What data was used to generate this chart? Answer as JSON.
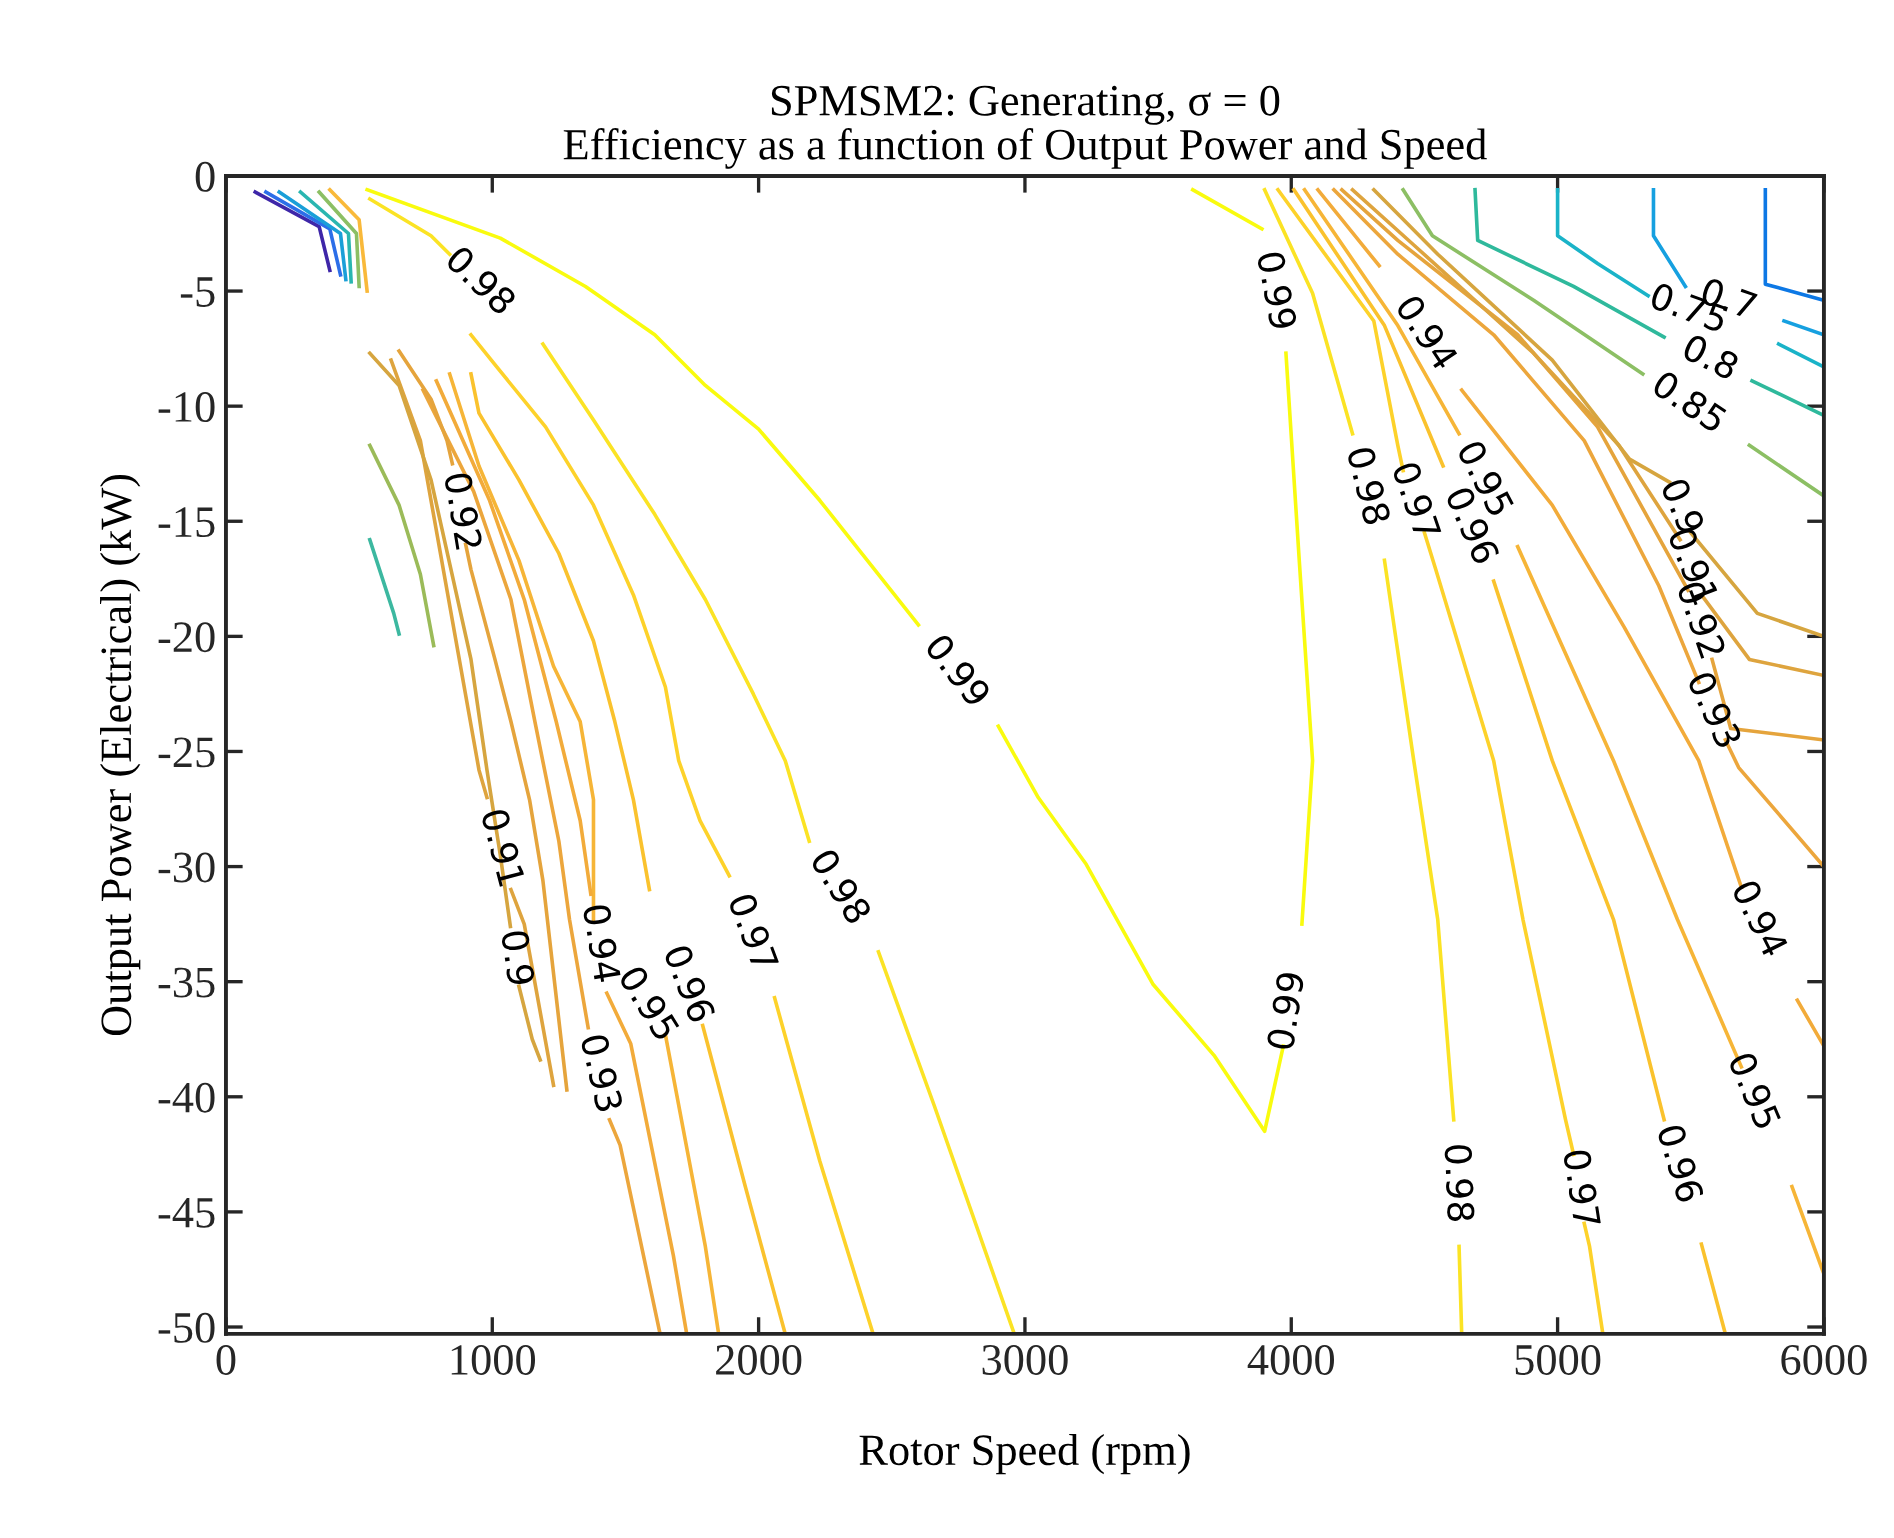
{
  "chart_data": {
    "type": "line",
    "title": "SPMSM2: Generating, σ = 0\nEfficiency as a function of Output Power and Speed",
    "xlabel": "Rotor Speed (rpm)",
    "ylabel": "Output Power (Electrical) (kW)",
    "xlim": [
      0,
      6000
    ],
    "xticks": [
      0,
      1000,
      2000,
      3000,
      4000,
      5000,
      6000
    ],
    "ylim": [
      -50.3,
      0
    ],
    "yticks": [
      -50,
      -45,
      -40,
      -35,
      -30,
      -25,
      -20,
      -15,
      -10,
      -5,
      0
    ],
    "grid": false,
    "series": [
      {
        "name": "0.99",
        "color": "#f9fb0e",
        "x": [
          530,
          1030,
          1350,
          1610,
          1800,
          2000,
          2230,
          2600,
          2740,
          2900,
          3050,
          3230,
          3480,
          3710,
          3900,
          3970,
          3990,
          4040,
          4080,
          4030,
          3980,
          3935,
          3890,
          3630
        ],
        "values": [
          -0.6,
          -2.7,
          -4.8,
          -6.9,
          -9.1,
          -11.0,
          -14.1,
          -19.5,
          null,
          -23.9,
          -27.0,
          -29.9,
          -35.1,
          -38.2,
          -41.5,
          -37.8,
          null,
          -32.5,
          -25.4,
          -16.7,
          -7.7,
          null,
          -2.3,
          -0.6
        ]
      },
      {
        "name": "0.98",
        "color": "#fbe324",
        "x": [
          540,
          770,
          840,
          950,
          1190,
          1380,
          1610,
          1800,
          1980,
          2100,
          2190,
          2300,
          2450,
          2660,
          2960
        ],
        "values": [
          -1.0,
          -2.6,
          -3.4,
          null,
          -7.3,
          -10.6,
          -14.7,
          -18.4,
          -22.5,
          -25.4,
          -28.9,
          null,
          -33.7,
          -40.4,
          -50.3
        ]
      },
      {
        "name": "0.97",
        "color": "#fdd22a",
        "x": [
          920,
          1010,
          1200,
          1380,
          1530,
          1650,
          1700,
          1780,
          1890,
          1970,
          2060,
          2230,
          2430
        ],
        "values": [
          -6.9,
          -8.2,
          -10.9,
          -14.3,
          -18.2,
          -22.2,
          -25.4,
          -28.0,
          -30.4,
          null,
          -35.7,
          -42.8,
          -50.3
        ]
      },
      {
        "name": "0.96",
        "color": "#fac22d",
        "x": [
          920,
          950,
          1100,
          1250,
          1380,
          1460,
          1530,
          1590,
          1730,
          1790,
          1950,
          2100
        ],
        "values": [
          -8.6,
          -10.3,
          -13.2,
          -16.4,
          -20.2,
          -23.7,
          -27.1,
          -31.0,
          null,
          -36.9,
          -43.9,
          -50.3
        ]
      },
      {
        "name": "0.95",
        "color": "#f6b537",
        "x": [
          840,
          950,
          1100,
          1230,
          1330,
          1380,
          1380,
          1580,
          1650,
          1800,
          1850
        ],
        "values": [
          -8.6,
          -12.6,
          -16.7,
          -21.3,
          -23.7,
          -27.1,
          -32.3,
          null,
          -37.3,
          -46.5,
          -50.3
        ]
      },
      {
        "name": "0.94",
        "color": "#f2ab3a",
        "x": [
          790,
          990,
          1120,
          1240,
          1330,
          1370,
          1400,
          1430,
          1520,
          1680,
          1730
        ],
        "values": [
          -8.9,
          -14.1,
          -18.4,
          -23.7,
          -28.0,
          -31.2,
          null,
          -35.5,
          -37.7,
          -46.9,
          -50.3
        ]
      },
      {
        "name": "0.93",
        "color": "#eca63c",
        "x": [
          740,
          930,
          1070,
          1160,
          1250,
          1290,
          1360,
          1400,
          1440,
          1480,
          1630
        ],
        "values": [
          -9.3,
          -13.7,
          -18.4,
          -23.7,
          -28.9,
          -32.3,
          -37.0,
          null,
          -41.0,
          -42.1,
          -50.3
        ]
      },
      {
        "name": "0.92",
        "color": "#e5a43c",
        "x": [
          650,
          770,
          830,
          850,
          880,
          900,
          920,
          1010,
          1070,
          1140,
          1190,
          1280
        ],
        "values": [
          -7.6,
          -9.7,
          -11.5,
          -12.5,
          null,
          -16.0,
          -17.1,
          -21.0,
          -23.7,
          -27.1,
          -30.6,
          -39.7
        ]
      },
      {
        "name": "0.91",
        "color": "#dea43e",
        "x": [
          620,
          730,
          950,
          980,
          1030,
          1070,
          1120,
          1230
        ],
        "values": [
          -8.0,
          -11.5,
          -25.8,
          -27.0,
          null,
          -31.0,
          -32.5,
          -39.5
        ]
      },
      {
        "name": "0.9",
        "color": "#d6a53f",
        "x": [
          540,
          650,
          770,
          920,
          980,
          1030,
          1068,
          1085,
          1100,
          1150,
          1180
        ],
        "values": [
          -7.7,
          -9.1,
          -13.2,
          -21.0,
          -25.8,
          -29.5,
          -32.6,
          null,
          -35.2,
          -37.5,
          -38.4
        ]
      },
      {
        "color": "#9bbb59",
        "x": [
          540,
          650,
          730,
          780
        ],
        "values": [
          -11.7,
          -14.3,
          -17.3,
          -20.4
        ]
      },
      {
        "color": "#3cb8a0",
        "x": [
          540,
          630,
          650
        ],
        "values": [
          -15.8,
          -19.0,
          -19.9
        ]
      },
      {
        "color": "#3e26a8",
        "x": [
          110,
          350,
          390
        ],
        "values": [
          -0.7,
          -2.2,
          -4.1
        ]
      },
      {
        "color": "#2c6ee8",
        "x": [
          150,
          390,
          430
        ],
        "values": [
          -0.7,
          -2.3,
          -4.3
        ]
      },
      {
        "color": "#1a9fd8",
        "x": [
          200,
          430,
          450
        ],
        "values": [
          -0.7,
          -2.5,
          -4.5
        ]
      },
      {
        "color": "#2ab6b0",
        "x": [
          280,
          460,
          470
        ],
        "values": [
          -0.7,
          -2.5,
          -4.6
        ]
      },
      {
        "color": "#8cbf64",
        "x": [
          350,
          490,
          500
        ],
        "values": [
          -0.7,
          -2.5,
          -4.8
        ]
      },
      {
        "color": "#f9b93a",
        "x": [
          390,
          500,
          530
        ],
        "values": [
          -0.6,
          -1.9,
          -5.0
        ]
      },
      {
        "name": "0.98",
        "color": "#fbe324",
        "x": [
          3900,
          4080,
          4230,
          4280,
          4350,
          4460,
          4550,
          4610,
          4620,
          4630,
          4640
        ],
        "values": [
          -0.6,
          -5.1,
          -11.2,
          null,
          -16.7,
          -25.4,
          -32.3,
          -41.0,
          null,
          -46.5,
          -50.3
        ]
      },
      {
        "name": "0.97",
        "color": "#fdd22a",
        "x": [
          3950,
          4310,
          4400,
          4420,
          4460,
          4500,
          4540,
          4760,
          4870,
          5030,
          5060,
          5080,
          5100,
          5120,
          5170
        ],
        "values": [
          -0.6,
          -6.3,
          -11.7,
          -12.8,
          null,
          -15.5,
          -17.0,
          -25.4,
          -32.3,
          -41.0,
          -42.5,
          null,
          -45.5,
          -46.5,
          -50.3
        ]
      },
      {
        "name": "0.96",
        "color": "#fac22d",
        "x": [
          4010,
          4350,
          4570,
          4670,
          4760,
          4980,
          5210,
          5400,
          5450,
          5540,
          5630
        ],
        "values": [
          -0.6,
          -6.5,
          -12.6,
          null,
          -17.6,
          -25.4,
          -32.3,
          -41.0,
          null,
          -46.4,
          -50.3
        ]
      },
      {
        "name": "0.95",
        "color": "#f6b537",
        "x": [
          4050,
          4400,
          4630,
          4720,
          4850,
          5210,
          5450,
          5690,
          5730,
          5880,
          6000
        ],
        "values": [
          -0.6,
          -6.5,
          -11.2,
          null,
          -16.1,
          -25.4,
          -32.3,
          -38.7,
          null,
          -43.9,
          -47.7
        ]
      },
      {
        "name": "0.94",
        "color": "#f2ab3a",
        "x": [
          4100,
          4330,
          4500,
          4640,
          4980,
          5250,
          5530,
          5690,
          5750,
          5900,
          6000
        ],
        "values": [
          -0.6,
          -3.9,
          null,
          -9.3,
          -14.3,
          -19.6,
          -25.4,
          -30.9,
          null,
          -35.8,
          -37.8
        ]
      },
      {
        "name": "0.93",
        "color": "#eca63c",
        "x": [
          4160,
          4400,
          4760,
          5100,
          5380,
          5530,
          5580,
          5630,
          5680,
          6000
        ],
        "values": [
          -0.6,
          -3.4,
          -6.9,
          -11.5,
          -17.8,
          -22.0,
          null,
          -24.5,
          -25.7,
          -30.0
        ]
      },
      {
        "name": "0.92",
        "color": "#e5a43c",
        "x": [
          4190,
          4400,
          4850,
          5150,
          5490,
          5530,
          5580,
          5650,
          6000
        ],
        "values": [
          -0.6,
          -2.8,
          -6.9,
          -10.9,
          -18.0,
          null,
          -21.0,
          -24.0,
          -24.5
        ]
      },
      {
        "name": "0.91",
        "color": "#dea43e",
        "x": [
          4230,
          4460,
          4910,
          5230,
          5460,
          5500,
          5540,
          5720,
          6000
        ],
        "values": [
          -0.6,
          -3.0,
          -7.7,
          -11.7,
          -15.8,
          null,
          -18.2,
          -21.0,
          -21.7
        ]
      },
      {
        "name": "0.9",
        "color": "#d6a53f",
        "x": [
          4310,
          4550,
          4980,
          5270,
          5420,
          5460,
          5500,
          5750,
          6000
        ],
        "values": [
          -0.6,
          -3.4,
          -8.0,
          -12.3,
          -13.3,
          null,
          -15.5,
          -19.0,
          -20.0
        ]
      },
      {
        "name": "0.85",
        "color": "#8cbf64",
        "x": [
          4420,
          4530,
          4910,
          5320,
          5490,
          5720,
          6000
        ],
        "values": [
          -0.6,
          -2.6,
          -5.4,
          -8.6,
          null,
          -11.7,
          -13.9
        ]
      },
      {
        "name": "0.8",
        "color": "#2fb99c",
        "x": [
          4690,
          4700,
          5060,
          5400,
          5570,
          5730,
          6000
        ],
        "values": [
          -0.6,
          -2.8,
          -4.8,
          -7.0,
          null,
          -8.9,
          -10.4
        ]
      },
      {
        "name": "0.75",
        "color": "#1ab3c8",
        "x": [
          5000,
          5000,
          5150,
          5340,
          5490,
          5830,
          6000
        ],
        "values": [
          -0.6,
          -2.6,
          -3.8,
          -5.2,
          null,
          -7.3,
          -8.3
        ]
      },
      {
        "name": "0.7",
        "color": "#16a0e0",
        "x": [
          5360,
          5360,
          5480,
          5640,
          5850,
          6000
        ],
        "values": [
          -0.6,
          -2.6,
          -4.8,
          null,
          -6.3,
          -6.9
        ]
      },
      {
        "color": "#0d78e5",
        "x": [
          5780,
          5780,
          6000
        ],
        "values": [
          -0.6,
          -4.7,
          -5.4
        ]
      }
    ]
  }
}
